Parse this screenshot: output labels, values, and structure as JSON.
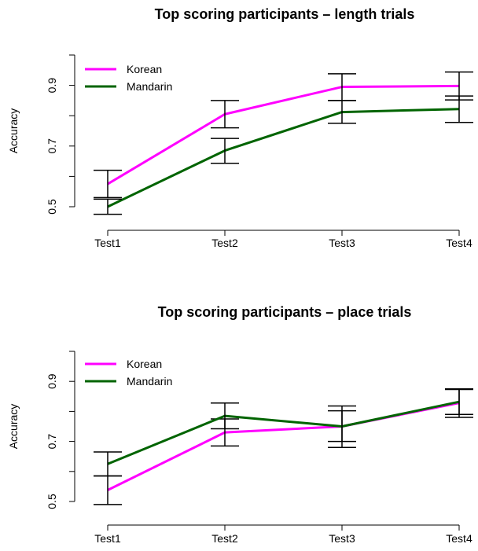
{
  "chart_data": [
    {
      "type": "line",
      "title": "Top scoring participants – length trials",
      "xlabel": "",
      "ylabel": "Accuracy",
      "categories": [
        "Test1",
        "Test2",
        "Test3",
        "Test4"
      ],
      "ylim": [
        0.45,
        1.0
      ],
      "yticks": [
        "0.5",
        "0.7",
        "0.9"
      ],
      "legend_position": "top-left",
      "grid": false,
      "series": [
        {
          "name": "Korean",
          "color": "#ff00ff",
          "values": [
            0.575,
            0.805,
            0.895,
            0.898
          ],
          "error_low": [
            0.53,
            0.76,
            0.85,
            0.852
          ],
          "error_high": [
            0.62,
            0.85,
            0.938,
            0.944
          ]
        },
        {
          "name": "Mandarin",
          "color": "#006400",
          "values": [
            0.5,
            0.685,
            0.812,
            0.822
          ],
          "error_low": [
            0.475,
            0.643,
            0.775,
            0.778
          ],
          "error_high": [
            0.525,
            0.725,
            0.85,
            0.865
          ]
        }
      ]
    },
    {
      "type": "line",
      "title": "Top scoring participants – place trials",
      "xlabel": "",
      "ylabel": "Accuracy",
      "categories": [
        "Test1",
        "Test2",
        "Test3",
        "Test4"
      ],
      "ylim": [
        0.45,
        1.0
      ],
      "yticks": [
        "0.5",
        "0.7",
        "0.9"
      ],
      "legend_position": "top-left",
      "grid": false,
      "series": [
        {
          "name": "Korean",
          "color": "#ff00ff",
          "values": [
            0.538,
            0.73,
            0.75,
            0.828
          ],
          "error_low": [
            0.49,
            0.685,
            0.68,
            0.78
          ],
          "error_high": [
            0.585,
            0.775,
            0.818,
            0.873
          ]
        },
        {
          "name": "Mandarin",
          "color": "#006400",
          "values": [
            0.625,
            0.785,
            0.75,
            0.832
          ],
          "error_low": [
            0.585,
            0.742,
            0.7,
            0.79
          ],
          "error_high": [
            0.665,
            0.828,
            0.802,
            0.875
          ]
        }
      ]
    }
  ]
}
